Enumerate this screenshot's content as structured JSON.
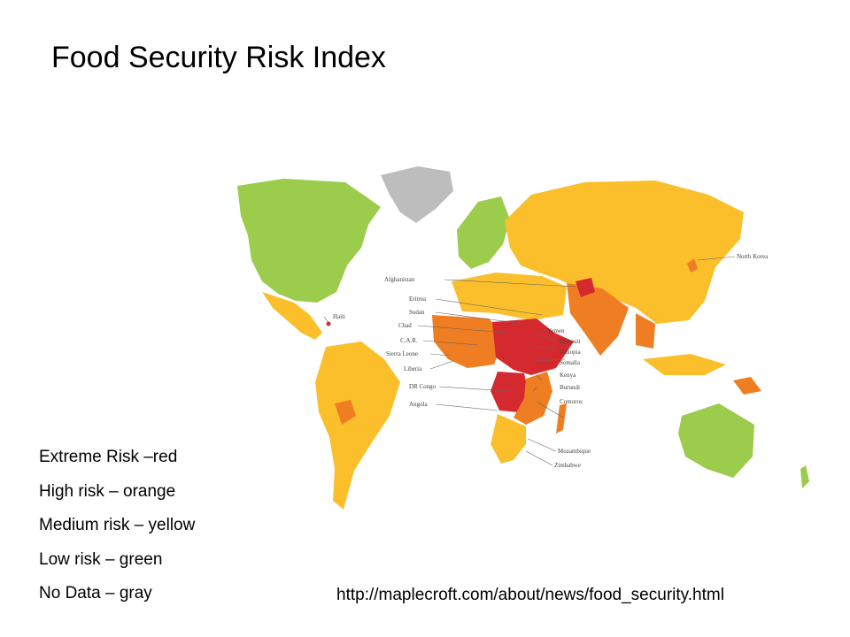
{
  "slide": {
    "title": "Food Security Risk Index",
    "source_url": "http://maplecroft.com/about/news/food_security.html"
  },
  "legend": [
    {
      "label": "Extreme Risk –red",
      "color": "#d42a2f"
    },
    {
      "label": "High risk – orange",
      "color": "#ef7d22"
    },
    {
      "label": "Medium risk – yellow",
      "color": "#fbbf2c"
    },
    {
      "label": "Low risk – green",
      "color": "#9ccc4b"
    },
    {
      "label": "No Data – gray",
      "color": "#bdbdbd"
    }
  ],
  "map_labels": {
    "afghanistan": "Afghanistan",
    "eritrea": "Eritrea",
    "sudan": "Sudan",
    "chad": "Chad",
    "car": "C.A.R.",
    "sierra_leone": "Sierra Leone",
    "liberia": "Liberia",
    "dr_congo": "DR Congo",
    "angola": "Angola",
    "haiti": "Haiti",
    "north_korea": "North Korea",
    "yemen": "Yemen",
    "djibouti": "Djibouti",
    "ethiopia": "Ethiopia",
    "somalia": "Somalia",
    "kenya": "Kenya",
    "burundi": "Burundi",
    "comoros": "Comoros",
    "mozambique": "Mozambique",
    "zimbabwe": "Zimbabwe"
  }
}
